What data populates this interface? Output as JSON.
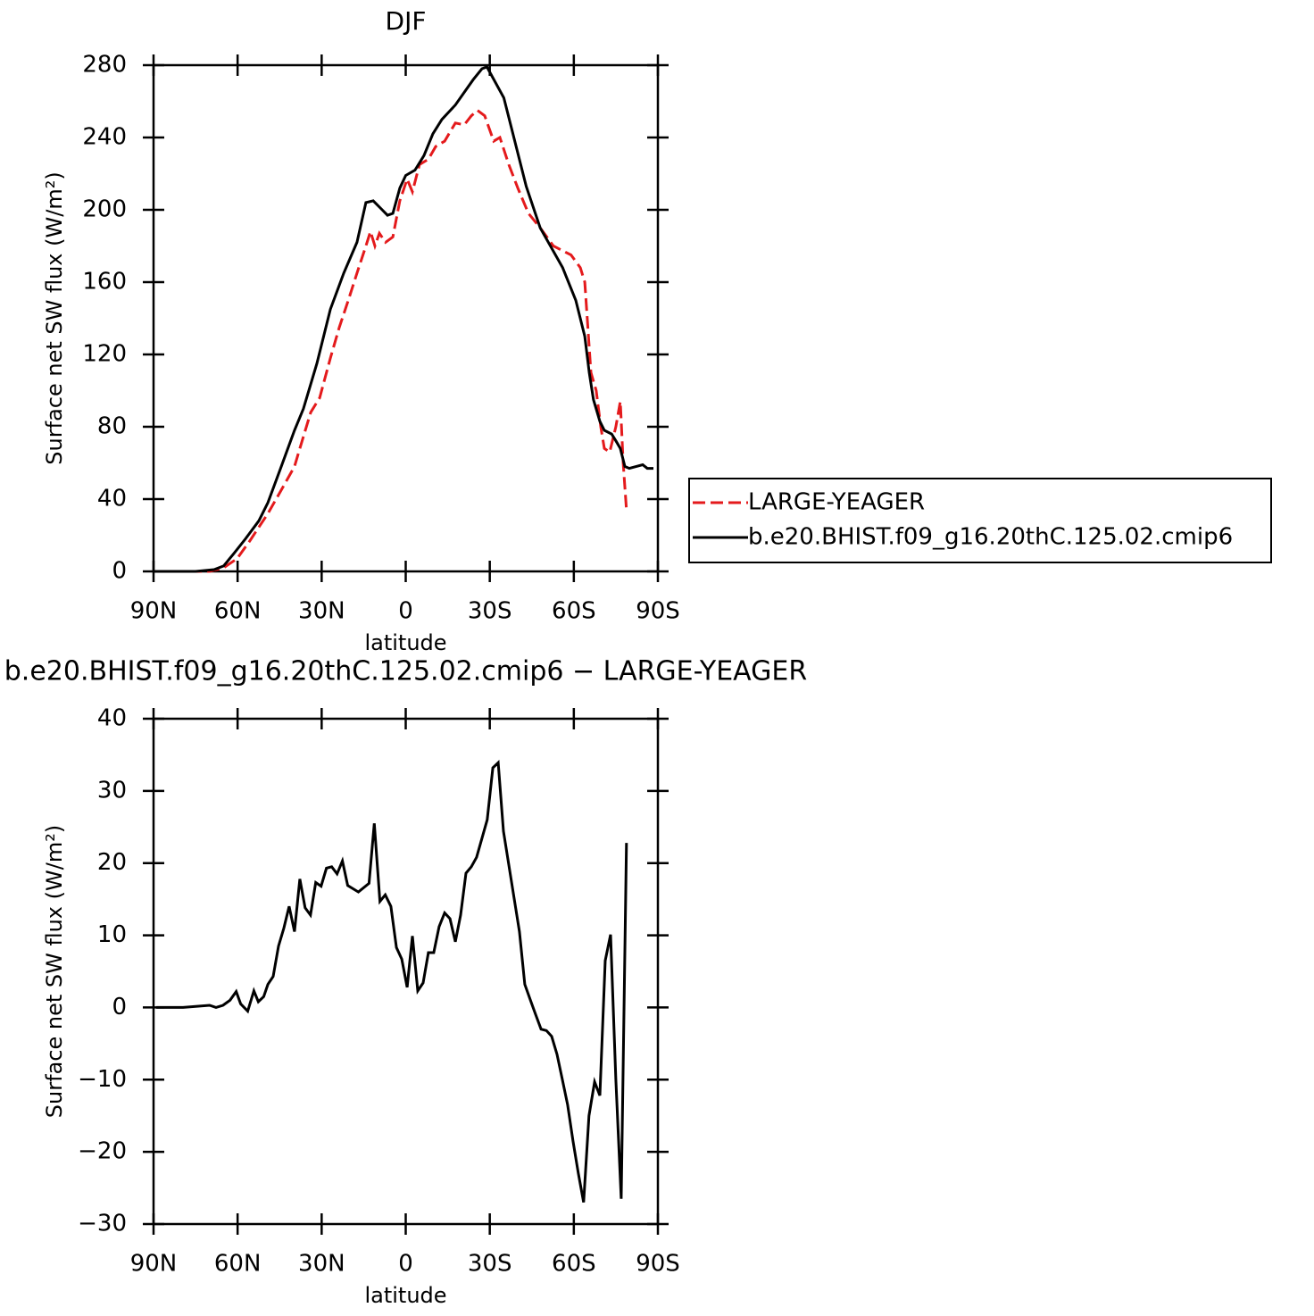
{
  "chart_data": [
    {
      "type": "line",
      "title": "DJF",
      "x_label": "latitude",
      "y_label": "Surface net SW flux (W/m²)",
      "xlim": [
        90,
        -90
      ],
      "xticks": [
        {
          "value": 90,
          "label": "90N"
        },
        {
          "value": 60,
          "label": "60N"
        },
        {
          "value": 30,
          "label": "30N"
        },
        0,
        {
          "value": -30,
          "label": "30S"
        },
        {
          "value": -60,
          "label": "60S"
        },
        {
          "value": -90,
          "label": "90S"
        }
      ],
      "ylim": [
        0,
        280
      ],
      "yticks": [
        0,
        40,
        80,
        120,
        160,
        200,
        240,
        280
      ],
      "legend": "right",
      "series": [
        {
          "name": "LARGE-YEAGER",
          "color": "#e41a1c",
          "dashed": true,
          "x": [
            90,
            70,
            65,
            60.2,
            55.6,
            49.2,
            44.4,
            39.7,
            37.8,
            33.9,
            30.7,
            26.9,
            23.7,
            20.5,
            17.4,
            14.2,
            12.6,
            11,
            9.4,
            7.2,
            4.6,
            2.1,
            -0.5,
            -2.4,
            -4.9,
            -8.1,
            -10.7,
            -13.9,
            -17.7,
            -20.9,
            -23.4,
            -25.6,
            -28.2,
            -31.4,
            -33.6,
            -36.8,
            -40,
            -43.8,
            -48,
            -52.7,
            -59,
            -62.3,
            -63.9,
            -66.1,
            -68,
            -69.6,
            -70.9,
            -72.8,
            -75,
            -76.6,
            -77.6,
            -78.8
          ],
          "values": [
            0,
            0,
            2,
            7,
            17,
            32,
            45,
            58,
            68,
            88,
            96,
            118,
            135,
            150,
            165,
            180,
            188,
            180,
            187,
            182,
            185,
            205,
            217,
            210,
            225,
            228,
            235,
            238,
            248,
            247,
            252,
            255,
            252,
            238,
            240,
            225,
            212,
            198,
            190,
            180,
            175,
            168,
            160,
            110,
            100,
            80,
            68,
            66,
            80,
            94,
            60,
            34
          ]
        },
        {
          "name": "b.e20.BHIST.f09_g16.20thC.125.02.cmip6",
          "color": "#000000",
          "dashed": false,
          "x": [
            90,
            75,
            68.4,
            65,
            61.3,
            57.2,
            52.4,
            49.2,
            44.4,
            39.7,
            36.5,
            31.7,
            26.9,
            22.1,
            17.4,
            14.2,
            11.6,
            8.4,
            6.5,
            4.6,
            2.1,
            0,
            -3.3,
            -6.5,
            -9.7,
            -12.9,
            -17.7,
            -20.9,
            -24.1,
            -27.2,
            -29,
            -35,
            -43,
            -48,
            -56,
            -60.7,
            -63.9,
            -65.5,
            -67,
            -69.3,
            -70.9,
            -73.5,
            -75.1,
            -76.6,
            -78.2,
            -79.8,
            -84.6,
            -86.2,
            -88.4
          ],
          "values": [
            0,
            0,
            1,
            3,
            10,
            18,
            28,
            38,
            58,
            78,
            90,
            115,
            145,
            165,
            182,
            204,
            205,
            200,
            197,
            198,
            212,
            219,
            222,
            230,
            242,
            250,
            258,
            265,
            272,
            278,
            279,
            262,
            213,
            190,
            168,
            150,
            130,
            110,
            95,
            83,
            78,
            76,
            72,
            68,
            58,
            57,
            59,
            57,
            57
          ]
        }
      ]
    },
    {
      "type": "line",
      "title": "b.e20.BHIST.f09_g16.20thC.125.02.cmip6 − LARGE-YEAGER",
      "x_label": "latitude",
      "y_label": "Surface net SW flux (W/m²)",
      "xlim": [
        90,
        -90
      ],
      "xticks": [
        {
          "value": 90,
          "label": "90N"
        },
        {
          "value": 60,
          "label": "60N"
        },
        {
          "value": 30,
          "label": "30N"
        },
        0,
        {
          "value": -30,
          "label": "30S"
        },
        {
          "value": -60,
          "label": "60S"
        },
        {
          "value": -90,
          "label": "90S"
        }
      ],
      "ylim": [
        -30,
        40
      ],
      "yticks": [
        {
          "value": -30,
          "label": "−30"
        },
        {
          "value": -20,
          "label": "−20"
        },
        {
          "value": -10,
          "label": "−10"
        },
        0,
        10,
        20,
        30,
        40
      ],
      "series": [
        {
          "color": "#000000",
          "dashed": false,
          "x": [
            89,
            79.5,
            70,
            67.7,
            65.2,
            62.7,
            60.5,
            58.9,
            56.4,
            54.2,
            52.6,
            50.7,
            49.2,
            47.3,
            45.4,
            43.5,
            41.6,
            39.7,
            37.8,
            35.9,
            34,
            32.1,
            30.2,
            28.3,
            26.4,
            24.5,
            22.6,
            20.7,
            16.9,
            13.1,
            11.2,
            9.2,
            7.3,
            5.3,
            3.3,
            1.4,
            -0.5,
            -2.4,
            -4.3,
            -6.2,
            -8.1,
            -10,
            -11.9,
            -13.9,
            -15.8,
            -17.7,
            -19.6,
            -21.5,
            -23.4,
            -25.3,
            -29.1,
            -31.1,
            -33,
            -34.9,
            -40.6,
            -42.5,
            -44.8,
            -46.4,
            -48.3,
            -50.2,
            -52.1,
            -54,
            -55.9,
            -57.8,
            -59.7,
            -61.6,
            -63.5,
            -65.4,
            -67.4,
            -69.3,
            -71.2,
            -73.1,
            -75,
            -76.9,
            -78.8
          ],
          "values": [
            0,
            0,
            0.3,
            0,
            0.3,
            1,
            2.2,
            0.5,
            -0.5,
            2.3,
            0.8,
            1.5,
            3.2,
            4.3,
            8.5,
            11,
            14,
            10.5,
            17.8,
            13.8,
            12.8,
            17.3,
            16.8,
            19.3,
            19.5,
            18.5,
            20.3,
            16.9,
            16,
            17.2,
            25.5,
            14.7,
            15.6,
            14,
            8.3,
            6.7,
            2.8,
            9.9,
            2.3,
            3.4,
            7.6,
            7.6,
            11.2,
            13.1,
            12.3,
            9.1,
            12.8,
            18.6,
            19.5,
            20.8,
            26,
            33.2,
            33.9,
            24.4,
            10.5,
            3.2,
            0.7,
            -1,
            -3,
            -3.2,
            -4,
            -6.5,
            -10,
            -13.5,
            -18.5,
            -23,
            -27,
            -15,
            -10.3,
            -12.2,
            6.5,
            10.1,
            -10,
            -26.5,
            22.8
          ]
        }
      ]
    }
  ]
}
